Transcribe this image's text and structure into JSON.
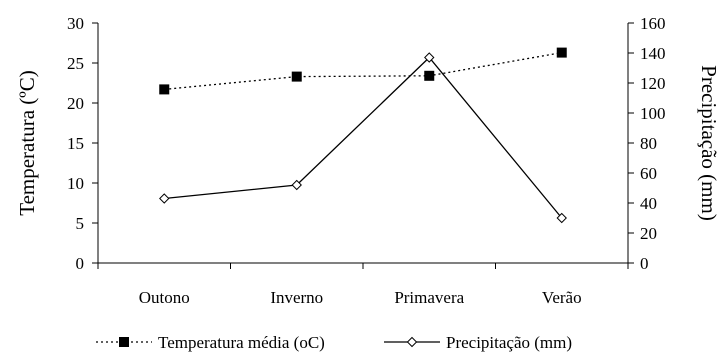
{
  "chart_data": {
    "type": "line",
    "categories": [
      "Outono",
      "Inverno",
      "Primavera",
      "Verão"
    ],
    "y_left": {
      "label": "Temperatura (ºC)",
      "range": [
        0,
        30
      ],
      "ticks": [
        0,
        5,
        10,
        15,
        20,
        25,
        30
      ]
    },
    "y_right": {
      "label": "Precipitação (mm)",
      "range": [
        0,
        160
      ],
      "ticks": [
        0,
        20,
        40,
        60,
        80,
        100,
        120,
        140,
        160
      ]
    },
    "series": [
      {
        "name": "Temperatura média (oC)",
        "axis": "left",
        "values": [
          21.7,
          23.3,
          23.4,
          26.3
        ],
        "line_style": "dotted",
        "marker": "filled-square",
        "color": "#000000"
      },
      {
        "name": "Precipitação (mm)",
        "axis": "right",
        "values": [
          43,
          52,
          137,
          30
        ],
        "line_style": "solid",
        "marker": "open-diamond",
        "color": "#000000"
      }
    ],
    "grid": false,
    "legend": "bottom"
  }
}
